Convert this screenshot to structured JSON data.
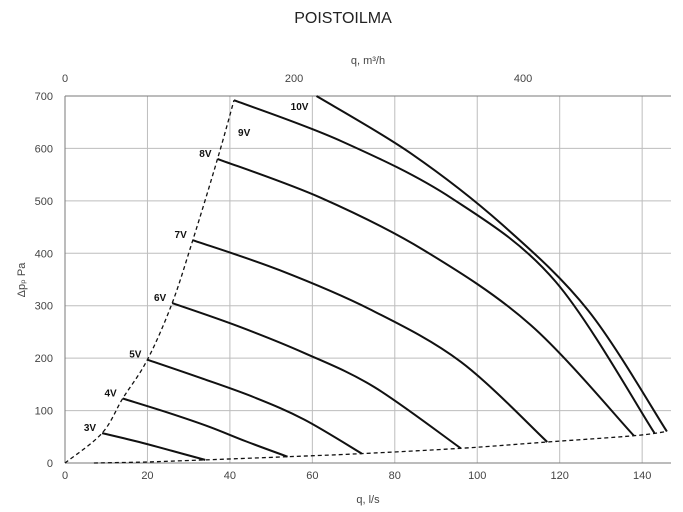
{
  "chart_data": {
    "type": "line",
    "title": "POISTOILMA",
    "xlabel": "q, l/s",
    "ylabel": "Δpₚ Pa",
    "x2label": "q, m³/h",
    "xlim": [
      0,
      147
    ],
    "ylim": [
      0,
      700
    ],
    "x_ticks": [
      0,
      20,
      40,
      60,
      80,
      100,
      120,
      140
    ],
    "y_ticks": [
      0,
      100,
      200,
      300,
      400,
      500,
      600,
      700
    ],
    "x2_ticks": [
      0,
      200,
      400
    ],
    "x2_scale_per_x": 3.6,
    "grid": true,
    "series": [
      {
        "name": "3V",
        "points": [
          [
            9,
            57
          ],
          [
            18,
            40
          ],
          [
            26,
            23
          ],
          [
            34,
            6
          ]
        ]
      },
      {
        "name": "4V",
        "points": [
          [
            14,
            123
          ],
          [
            25,
            96
          ],
          [
            35,
            69
          ],
          [
            44,
            41
          ],
          [
            54,
            12
          ]
        ]
      },
      {
        "name": "5V",
        "points": [
          [
            20,
            197
          ],
          [
            33,
            162
          ],
          [
            46,
            125
          ],
          [
            58,
            83
          ],
          [
            72,
            18
          ]
        ]
      },
      {
        "name": "6V",
        "points": [
          [
            26,
            305
          ],
          [
            42,
            261
          ],
          [
            58,
            210
          ],
          [
            75,
            145
          ],
          [
            96,
            28
          ]
        ]
      },
      {
        "name": "7V",
        "points": [
          [
            31,
            425
          ],
          [
            52,
            368
          ],
          [
            74,
            293
          ],
          [
            96,
            193
          ],
          [
            117,
            40
          ]
        ]
      },
      {
        "name": "8V",
        "points": [
          [
            37,
            580
          ],
          [
            62,
            506
          ],
          [
            87,
            406
          ],
          [
            113,
            263
          ],
          [
            138,
            52
          ]
        ]
      },
      {
        "name": "9V",
        "points": [
          [
            41,
            692
          ],
          [
            67,
            614
          ],
          [
            94,
            504
          ],
          [
            119,
            346
          ],
          [
            143,
            57
          ]
        ]
      },
      {
        "name": "10V",
        "points": [
          [
            61,
            700
          ],
          [
            84,
            590
          ],
          [
            106,
            455
          ],
          [
            127,
            290
          ],
          [
            146,
            60
          ]
        ]
      }
    ],
    "limit_lines": [
      {
        "points": [
          [
            0,
            0
          ],
          [
            9,
            57
          ],
          [
            14,
            123
          ],
          [
            20,
            197
          ],
          [
            26,
            305
          ],
          [
            31,
            425
          ],
          [
            37,
            580
          ],
          [
            41,
            692
          ]
        ]
      },
      {
        "points": [
          [
            7,
            0
          ],
          [
            20,
            2
          ],
          [
            34,
            6
          ],
          [
            54,
            12
          ],
          [
            72,
            18
          ],
          [
            96,
            28
          ],
          [
            117,
            40
          ],
          [
            138,
            52
          ],
          [
            146,
            60
          ]
        ]
      }
    ]
  }
}
